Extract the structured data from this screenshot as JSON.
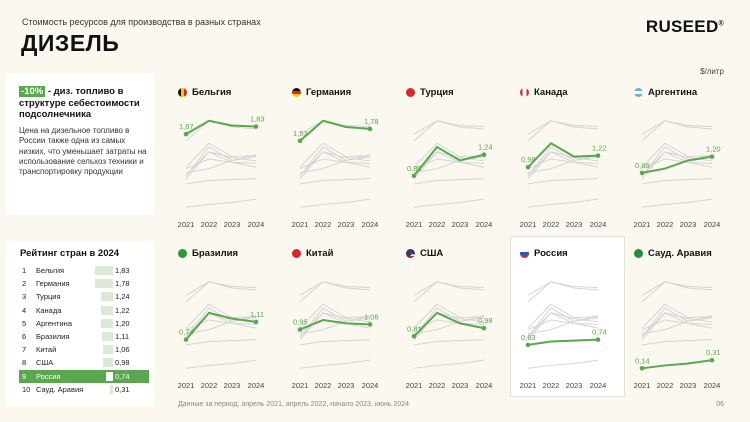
{
  "header": {
    "subtitle": "Стоимость ресурсов для производства в разных странах",
    "title": "ДИЗЕЛЬ",
    "logo": "RUSEED",
    "logo_mark": "®",
    "unit": "$/литр"
  },
  "highlight": {
    "badge": "-10%",
    "text": " - диз. топливо в структуре себестоимости подсолнечника",
    "body": "Цена на дизельное топливо в России также одна из самых низких, что уменьшает затраты на использование сельхоз техники и транспортировку продукции"
  },
  "ranking": {
    "title": "Рейтинг стран в 2024",
    "rows": [
      {
        "rank": "1",
        "name": "Бельгия",
        "value": "1,83",
        "num": 1.83,
        "highlight": false
      },
      {
        "rank": "2",
        "name": "Германия",
        "value": "1,78",
        "num": 1.78,
        "highlight": false
      },
      {
        "rank": "3",
        "name": "Турция",
        "value": "1,24",
        "num": 1.24,
        "highlight": false
      },
      {
        "rank": "4",
        "name": "Канада",
        "value": "1,22",
        "num": 1.22,
        "highlight": false
      },
      {
        "rank": "5",
        "name": "Аргентина",
        "value": "1,20",
        "num": 1.2,
        "highlight": false
      },
      {
        "rank": "6",
        "name": "Бразилия",
        "value": "1,11",
        "num": 1.11,
        "highlight": false
      },
      {
        "rank": "7",
        "name": "Китай",
        "value": "1,06",
        "num": 1.06,
        "highlight": false
      },
      {
        "rank": "8",
        "name": "США",
        "value": "0,98",
        "num": 0.98,
        "highlight": false
      },
      {
        "rank": "9",
        "name": "Россия",
        "value": "0,74",
        "num": 0.74,
        "highlight": true
      },
      {
        "rank": "10",
        "name": "Сауд. Аравия",
        "value": "0,31",
        "num": 0.31,
        "highlight": false
      }
    ]
  },
  "footnote": "Данные за период: апрель 2021, апрель 2022, начало 2023, июнь 2024",
  "page_number": "06",
  "colors": {
    "accent": "#5aa74f",
    "background_lines": "#d4d4d4",
    "panel": "#ffffff",
    "page": "#faf8ef"
  },
  "chart_data": {
    "type": "line",
    "x": [
      "2021",
      "2022",
      "2023",
      "2024"
    ],
    "series": [
      {
        "name": "Бельгия",
        "flag": "belgium-flag-icon",
        "values": [
          1.67,
          1.95,
          1.85,
          1.83
        ],
        "label_first": "1,67",
        "label_last": "1,83"
      },
      {
        "name": "Германия",
        "flag": "germany-flag-icon",
        "values": [
          1.53,
          1.95,
          1.82,
          1.78
        ],
        "label_first": "1,53",
        "label_last": "1,78"
      },
      {
        "name": "Турция",
        "flag": "turkey-flag-icon",
        "values": [
          0.8,
          1.4,
          1.12,
          1.24
        ],
        "label_first": "0,80",
        "label_last": "1,24"
      },
      {
        "name": "Канада",
        "flag": "canada-flag-icon",
        "values": [
          0.98,
          1.48,
          1.2,
          1.22
        ],
        "label_first": "0,98",
        "label_last": "1,22"
      },
      {
        "name": "Аргентина",
        "flag": "argentina-flag-icon",
        "values": [
          0.86,
          0.95,
          1.12,
          1.2
        ],
        "label_first": "0,86",
        "label_last": "1,20"
      },
      {
        "name": "Бразилия",
        "flag": "brazil-flag-icon",
        "values": [
          0.74,
          1.3,
          1.18,
          1.11
        ],
        "label_first": "0,74",
        "label_last": "1,11"
      },
      {
        "name": "Китай",
        "flag": "china-flag-icon",
        "values": [
          0.95,
          1.15,
          1.08,
          1.06
        ],
        "label_first": "0,95",
        "label_last": "1,06"
      },
      {
        "name": "США",
        "flag": "usa-flag-icon",
        "values": [
          0.81,
          1.3,
          1.08,
          0.98
        ],
        "label_first": "0,81",
        "label_last": "0,98"
      },
      {
        "name": "Россия",
        "flag": "russia-flag-icon",
        "values": [
          0.63,
          0.7,
          0.72,
          0.74
        ],
        "label_first": "0,63",
        "label_last": "0,74"
      },
      {
        "name": "Сауд. Аравия",
        "flag": "saudi-flag-icon",
        "values": [
          0.14,
          0.2,
          0.24,
          0.31
        ],
        "label_first": "0,14",
        "label_last": "0,31"
      }
    ],
    "ylim": [
      0,
      2.05
    ],
    "grid": false
  }
}
